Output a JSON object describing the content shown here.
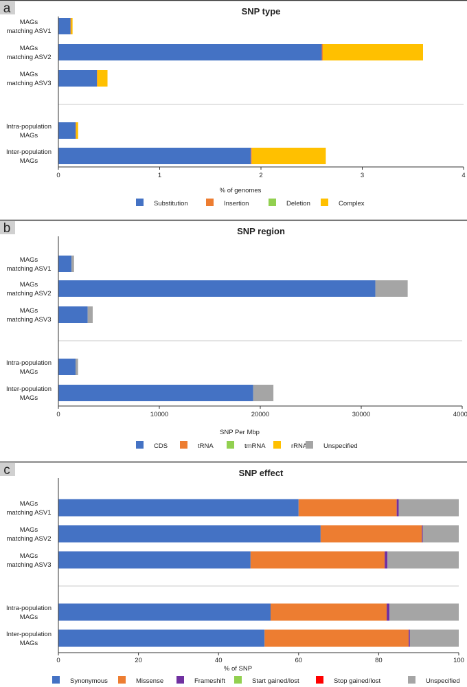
{
  "colors": {
    "Substitution": "#4472C4",
    "Insertion": "#ED7D31",
    "Deletion": "#92D050",
    "Complex": "#FFC000",
    "CDS": "#4472C4",
    "tRNA": "#ED7D31",
    "tmRNA": "#92D050",
    "rRNA": "#FFC000",
    "Unspecified": "#A5A5A5",
    "Synonymous": "#4472C4",
    "Missense": "#ED7D31",
    "Frameshift": "#7030A0",
    "Start gained/lost": "#92D050",
    "Stop gained/lost": "#FF0000"
  },
  "chart_data": [
    {
      "panel_label": "a",
      "type": "bar",
      "orientation": "horizontal",
      "stacked": true,
      "title": "SNP type",
      "xlabel": "% of genomes",
      "ylabel": "",
      "xlim": [
        0,
        4
      ],
      "xticks": [
        "0",
        "1",
        "2",
        "3",
        "4"
      ],
      "xtick_values": [
        0,
        1,
        2,
        3,
        4
      ],
      "categories": [
        [
          "MAGs",
          "matching ASV1"
        ],
        [
          "MAGs",
          "matching ASV2"
        ],
        [
          "MAGs",
          "matching ASV3"
        ],
        [
          "Intra-population",
          "MAGs"
        ],
        [
          "Inter-population",
          "MAGs"
        ]
      ],
      "series": [
        {
          "name": "Substitution",
          "values": [
            0.12,
            2.6,
            0.38,
            0.17,
            1.9
          ]
        },
        {
          "name": "Insertion",
          "values": [
            0.005,
            0.01,
            0.005,
            0.005,
            0.01
          ]
        },
        {
          "name": "Deletion",
          "values": [
            0,
            0,
            0,
            0,
            0
          ]
        },
        {
          "name": "Complex",
          "values": [
            0.015,
            0.99,
            0.1,
            0.02,
            0.73
          ]
        }
      ],
      "legend": [
        "Substitution",
        "Insertion",
        "Deletion",
        "Complex"
      ],
      "legend_position": "bottom"
    },
    {
      "panel_label": "b",
      "type": "bar",
      "orientation": "horizontal",
      "stacked": true,
      "title": "SNP region",
      "xlabel": "SNP Per Mbp",
      "ylabel": "",
      "xlim": [
        0,
        40000
      ],
      "xticks": [
        "0",
        "10000",
        "20000",
        "30000",
        "40000"
      ],
      "xtick_values": [
        0,
        10000,
        20000,
        30000,
        40000
      ],
      "categories": [
        [
          "MAGs",
          "matching ASV1"
        ],
        [
          "MAGs",
          "matching ASV2"
        ],
        [
          "MAGs",
          "matching ASV3"
        ],
        [
          "Intra-population",
          "MAGs"
        ],
        [
          "Inter-population",
          "MAGs"
        ]
      ],
      "series": [
        {
          "name": "CDS",
          "values": [
            1300,
            31400,
            2900,
            1700,
            19300
          ]
        },
        {
          "name": "tRNA",
          "values": [
            0,
            0,
            0,
            0,
            0
          ]
        },
        {
          "name": "tmRNA",
          "values": [
            0,
            0,
            0,
            0,
            0
          ]
        },
        {
          "name": "rRNA",
          "values": [
            0,
            0,
            0,
            0,
            0
          ]
        },
        {
          "name": "Unspecified",
          "values": [
            250,
            3200,
            500,
            250,
            2000
          ]
        }
      ],
      "legend": [
        "CDS",
        "tRNA",
        "tmRNA",
        "rRNA",
        "Unspecified"
      ],
      "legend_position": "bottom"
    },
    {
      "panel_label": "c",
      "type": "bar",
      "orientation": "horizontal",
      "stacked": true,
      "title": "SNP effect",
      "xlabel": "% of SNP",
      "ylabel": "",
      "xlim": [
        0,
        100
      ],
      "xticks": [
        "0",
        "20",
        "40",
        "60",
        "80",
        "100"
      ],
      "xtick_values": [
        0,
        20,
        40,
        60,
        80,
        100
      ],
      "categories": [
        [
          "MAGs",
          "matching ASV1"
        ],
        [
          "MAGs",
          "matching ASV2"
        ],
        [
          "MAGs",
          "matching ASV3"
        ],
        [
          "Intra-population",
          "MAGs"
        ],
        [
          "Inter-population",
          "MAGs"
        ]
      ],
      "series": [
        {
          "name": "Synonymous",
          "values": [
            60,
            65.5,
            48,
            53,
            51.5
          ]
        },
        {
          "name": "Missense",
          "values": [
            24.5,
            25.3,
            33.5,
            29,
            36
          ]
        },
        {
          "name": "Frameshift",
          "values": [
            0.5,
            0.2,
            0.7,
            0.7,
            0.3
          ]
        },
        {
          "name": "Start gained/lost",
          "values": [
            0,
            0,
            0,
            0,
            0
          ]
        },
        {
          "name": "Stop gained/lost",
          "values": [
            0,
            0,
            0,
            0,
            0
          ]
        },
        {
          "name": "Unspecified",
          "values": [
            15,
            9,
            17.8,
            17.3,
            12.2
          ]
        }
      ],
      "legend": [
        "Synonymous",
        "Missense",
        "Frameshift",
        "Start gained/lost",
        "Stop gained/lost",
        "Unspecified"
      ],
      "legend_position": "bottom"
    }
  ]
}
